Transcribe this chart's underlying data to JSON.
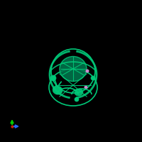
{
  "bg_color": "#000000",
  "protein_color": "#00C878",
  "pink_dot_color": "#CC88CC",
  "axis_x_color": "#2266FF",
  "axis_y_color": "#00CC00",
  "axis_origin_color": "#CC2200",
  "figure_size": [
    2.0,
    2.0
  ],
  "dpi": 100
}
